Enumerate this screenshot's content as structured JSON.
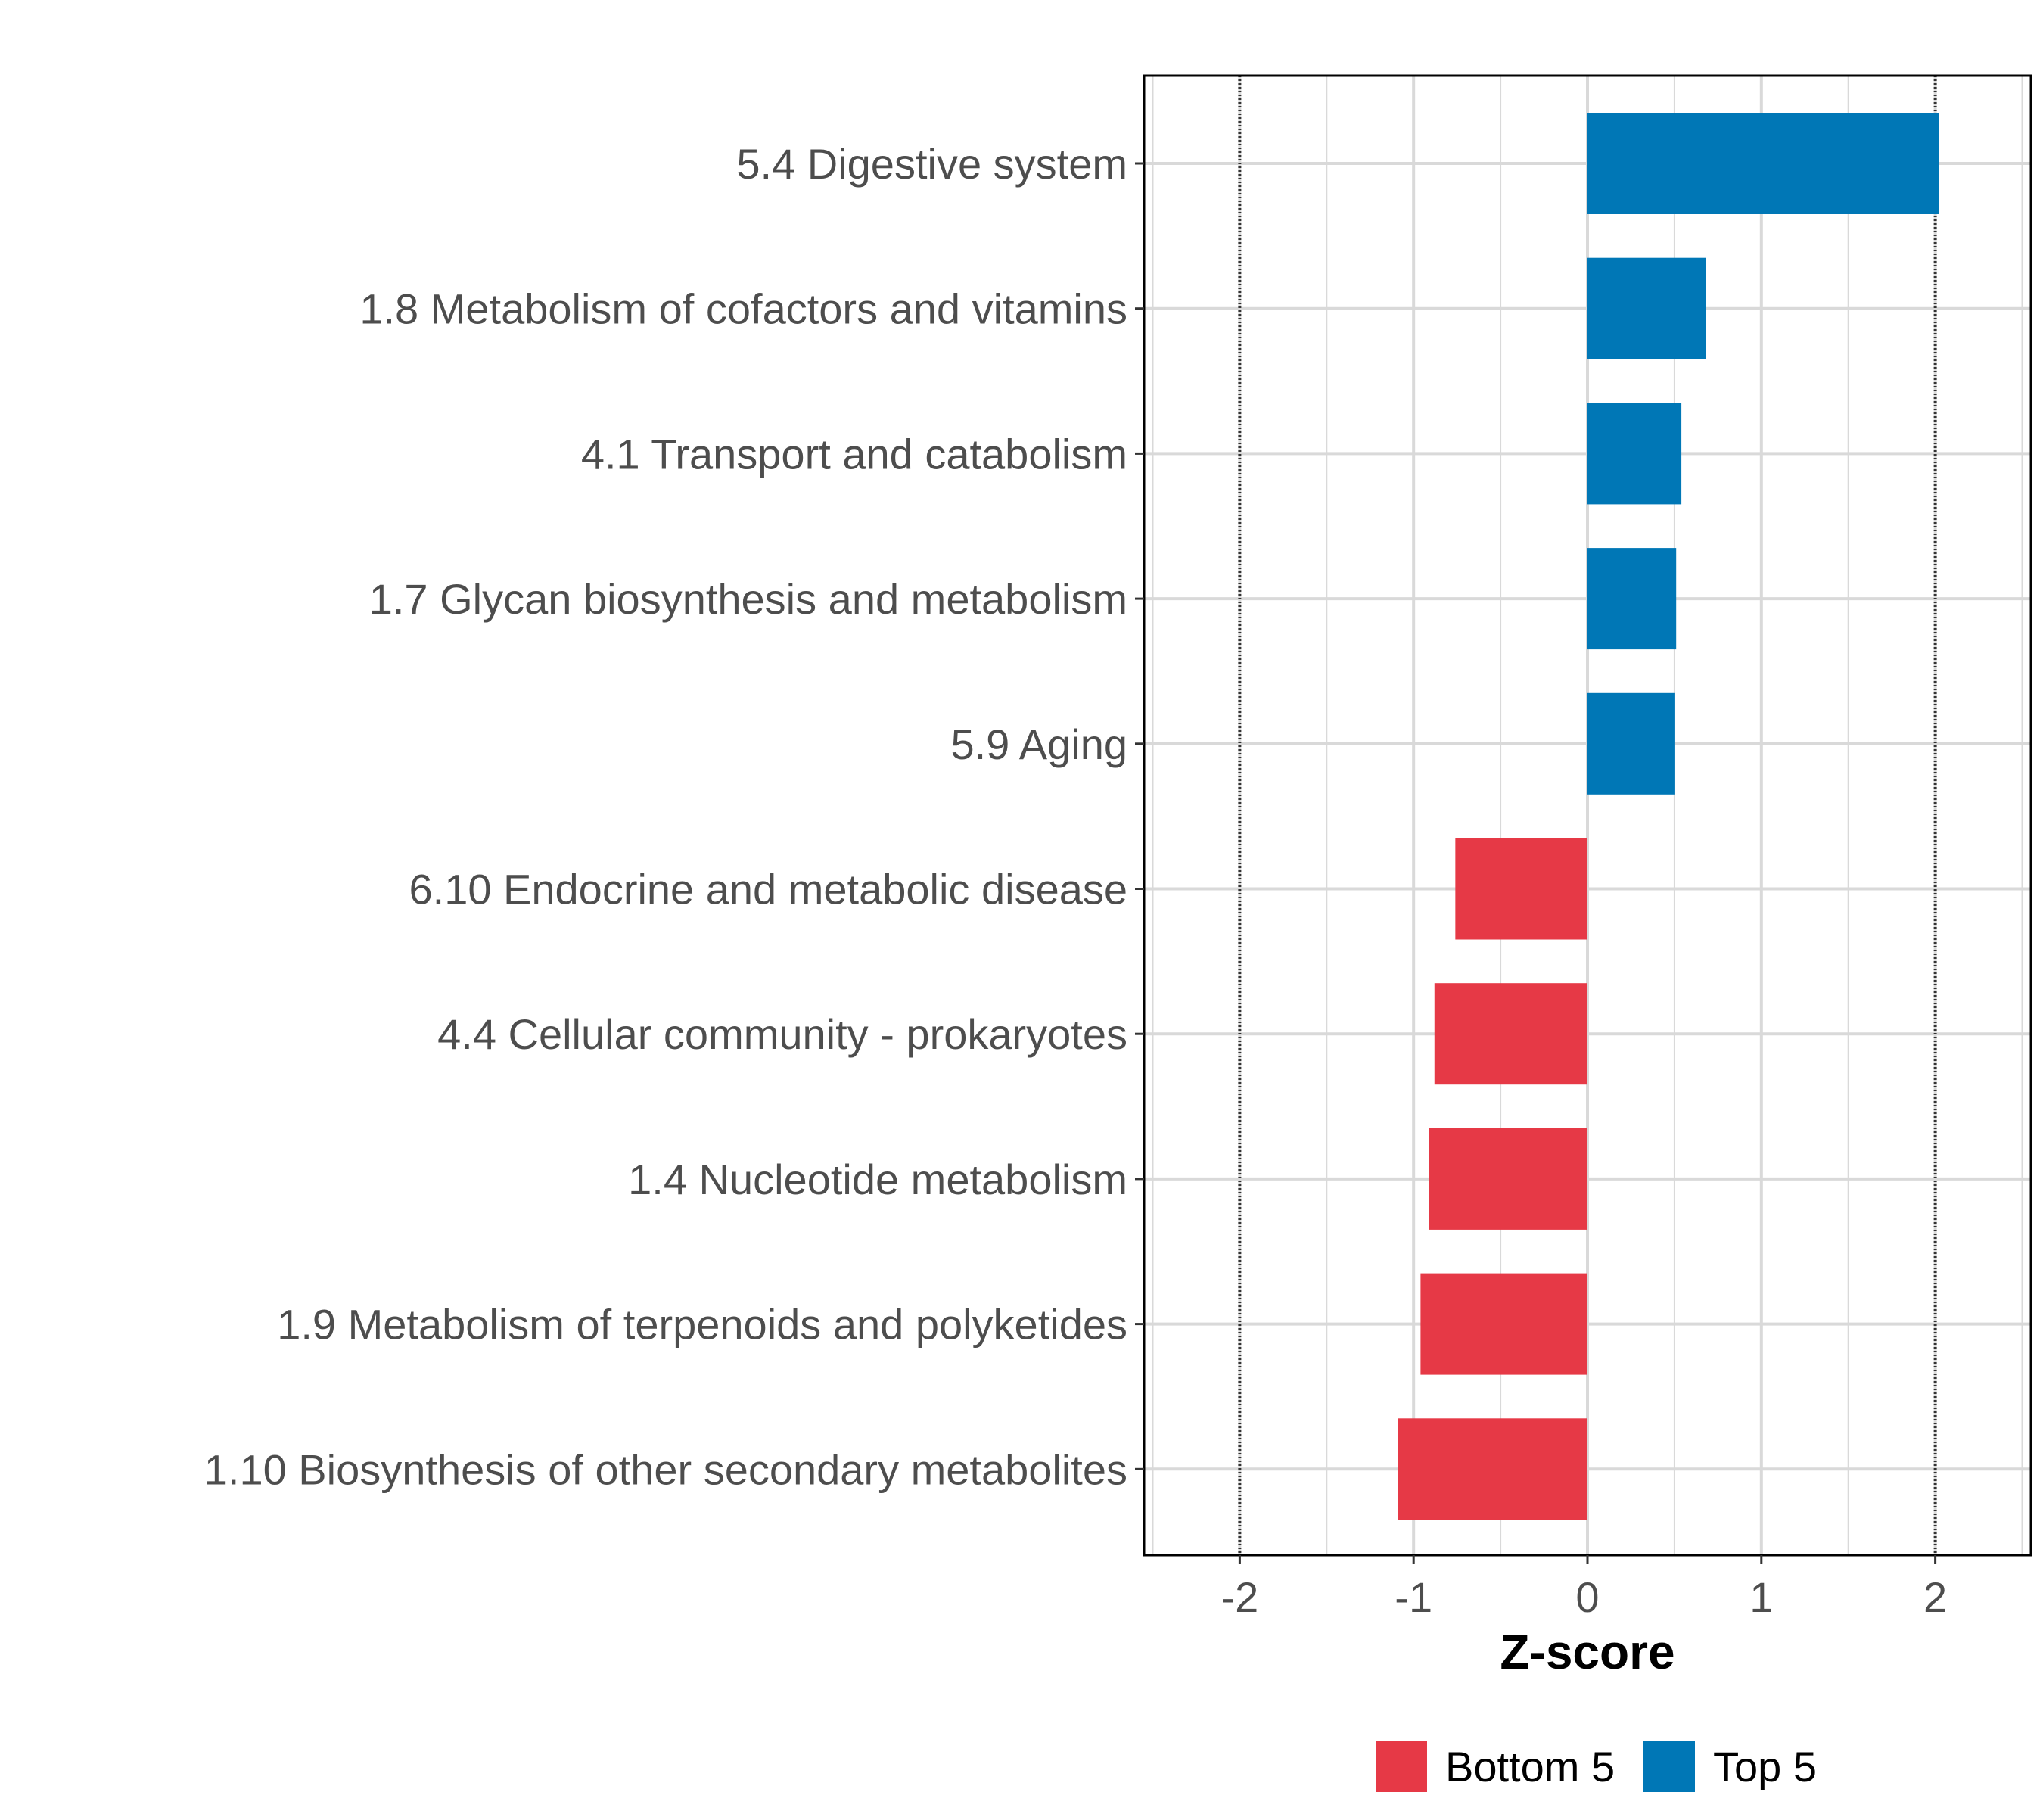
{
  "chart_data": {
    "type": "bar",
    "orientation": "horizontal",
    "xlabel": "Z-score",
    "ylabel": "",
    "xlim": [
      -2.55,
      2.55
    ],
    "x_ticks": [
      -2,
      -1,
      0,
      1,
      2
    ],
    "x_tick_labels": [
      "-2",
      "-1",
      "0",
      "1",
      "2"
    ],
    "reference_lines": [
      -2,
      2
    ],
    "grid": true,
    "legend_placement": "bottom",
    "categories": [
      "5.4 Digestive system",
      "1.8 Metabolism of cofactors and vitamins",
      "4.1 Transport and catabolism",
      "1.7 Glycan biosynthesis and metabolism",
      "5.9 Aging",
      "6.10 Endocrine and metabolic disease",
      "4.4 Cellular community - prokaryotes",
      "1.4 Nucleotide metabolism",
      "1.9 Metabolism of terpenoids and polyketides",
      "1.10 Biosynthesis of other secondary metabolites"
    ],
    "values": [
      2.02,
      0.68,
      0.54,
      0.51,
      0.5,
      -0.76,
      -0.88,
      -0.91,
      -0.96,
      -1.09
    ],
    "groups": [
      "Top 5",
      "Top 5",
      "Top 5",
      "Top 5",
      "Top 5",
      "Bottom 5",
      "Bottom 5",
      "Bottom 5",
      "Bottom 5",
      "Bottom 5"
    ],
    "legend": [
      {
        "name": "Bottom 5",
        "color": "#E63946"
      },
      {
        "name": "Top 5",
        "color": "#0077B6"
      }
    ]
  }
}
